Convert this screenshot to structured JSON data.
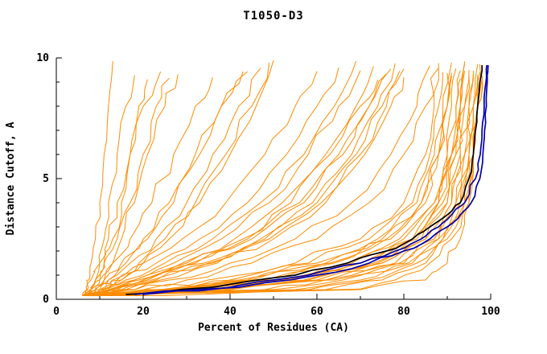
{
  "chart_data": {
    "type": "line",
    "title": "T1050-D3",
    "xlabel": "Percent of Residues (CA)",
    "ylabel": "Distance Cutoff, A",
    "xlim": [
      0,
      100
    ],
    "ylim": [
      0,
      10
    ],
    "x_major_ticks": [
      0,
      20,
      40,
      60,
      80,
      100
    ],
    "x_minor_ticks": [
      10,
      30,
      50,
      70,
      90
    ],
    "y_major_ticks": [
      0,
      5,
      10
    ],
    "y_minor_ticks": [
      1,
      2,
      3,
      4,
      6,
      7,
      8,
      9
    ],
    "grid": false,
    "legend": "none",
    "colors": {
      "models": "#ff8c00",
      "best_black": "#000000",
      "best_blue": "#0000b0",
      "axis": "#000000"
    },
    "y_levels": [
      0.15,
      0.4,
      0.8,
      1.5,
      2.5,
      4,
      6,
      8,
      10
    ],
    "models": [
      [
        6,
        7,
        7.5,
        8,
        9,
        10,
        11,
        12,
        13
      ],
      [
        7,
        8,
        9,
        10,
        11,
        12,
        14,
        16,
        18
      ],
      [
        8,
        9,
        10,
        11,
        13,
        15,
        17,
        19,
        21
      ],
      [
        6,
        7,
        8,
        10,
        12,
        14,
        17,
        20,
        24
      ],
      [
        9,
        10,
        11,
        13,
        15,
        18,
        21,
        25,
        28
      ],
      [
        7,
        8,
        9,
        11,
        14,
        17,
        20,
        23,
        26
      ],
      [
        6,
        8,
        10,
        13,
        17,
        22,
        27,
        32,
        36
      ],
      [
        8,
        10,
        12,
        16,
        21,
        27,
        33,
        38,
        43
      ],
      [
        7,
        9,
        12,
        17,
        23,
        30,
        36,
        42,
        47
      ],
      [
        9,
        12,
        15,
        20,
        26,
        33,
        40,
        46,
        50
      ],
      [
        6,
        8,
        11,
        15,
        20,
        26,
        32,
        38,
        44
      ],
      [
        8,
        11,
        14,
        19,
        25,
        32,
        39,
        45,
        49
      ],
      [
        6,
        9,
        13,
        20,
        29,
        39,
        48,
        55,
        60
      ],
      [
        7,
        10,
        15,
        23,
        33,
        44,
        53,
        60,
        65
      ],
      [
        8,
        12,
        18,
        27,
        38,
        49,
        58,
        65,
        70
      ],
      [
        6,
        10,
        16,
        25,
        36,
        47,
        57,
        64,
        69
      ],
      [
        9,
        14,
        21,
        31,
        43,
        54,
        63,
        70,
        74
      ],
      [
        7,
        12,
        19,
        29,
        41,
        52,
        62,
        69,
        73
      ],
      [
        8,
        13,
        20,
        32,
        45,
        57,
        66,
        72,
        76
      ],
      [
        6,
        11,
        18,
        30,
        44,
        56,
        65,
        72,
        77
      ],
      [
        9,
        15,
        23,
        35,
        48,
        60,
        69,
        75,
        79
      ],
      [
        7,
        13,
        21,
        34,
        47,
        59,
        68,
        74,
        78
      ],
      [
        8,
        14,
        24,
        37,
        50,
        62,
        71,
        77,
        80
      ],
      [
        6,
        12,
        22,
        36,
        49,
        61,
        70,
        76,
        80
      ],
      [
        7,
        20,
        35,
        55,
        70,
        80,
        85,
        87,
        88
      ],
      [
        8,
        25,
        42,
        60,
        74,
        83,
        87,
        89,
        90
      ],
      [
        6,
        22,
        40,
        58,
        72,
        82,
        86,
        88,
        89
      ],
      [
        9,
        28,
        46,
        64,
        77,
        85,
        88,
        90,
        91
      ],
      [
        7,
        26,
        45,
        63,
        76,
        84,
        88,
        90,
        91
      ],
      [
        8,
        30,
        50,
        68,
        80,
        87,
        90,
        91,
        92
      ],
      [
        6,
        24,
        44,
        62,
        75,
        84,
        88,
        90,
        91
      ],
      [
        9,
        32,
        52,
        70,
        82,
        88,
        91,
        92,
        93
      ],
      [
        7,
        28,
        48,
        67,
        79,
        87,
        90,
        92,
        93
      ],
      [
        8,
        34,
        55,
        72,
        83,
        89,
        92,
        93,
        94
      ],
      [
        6,
        30,
        52,
        70,
        82,
        88,
        91,
        93,
        94
      ],
      [
        9,
        36,
        58,
        75,
        85,
        90,
        93,
        94,
        95
      ],
      [
        7,
        32,
        54,
        73,
        84,
        90,
        92,
        94,
        95
      ],
      [
        8,
        50,
        66,
        79,
        87,
        91,
        94,
        95,
        96
      ],
      [
        6,
        34,
        57,
        75,
        85,
        91,
        93,
        95,
        96
      ],
      [
        9,
        55,
        70,
        81,
        88,
        92,
        95,
        96,
        97
      ],
      [
        7,
        36,
        60,
        78,
        87,
        92,
        94,
        96,
        97
      ],
      [
        8,
        58,
        72,
        83,
        89,
        93,
        95,
        97,
        97.5
      ],
      [
        6,
        38,
        62,
        80,
        88,
        93,
        95,
        96,
        97
      ],
      [
        9,
        62,
        75,
        85,
        90,
        94,
        96,
        97,
        98
      ],
      [
        7,
        40,
        64,
        82,
        89,
        94,
        96,
        97,
        98
      ],
      [
        8,
        65,
        78,
        86,
        91,
        95,
        96,
        97,
        98
      ],
      [
        6,
        18,
        30,
        45,
        60,
        72,
        80,
        85,
        88
      ],
      [
        9,
        16,
        26,
        40,
        55,
        68,
        77,
        83,
        86
      ],
      [
        9,
        70,
        85,
        90,
        93,
        95,
        96,
        97,
        97.5
      ],
      [
        7,
        48,
        62,
        74,
        82,
        88,
        91,
        93,
        94
      ]
    ],
    "highlight_y_levels": [
      0.2,
      0.5,
      1,
      1.5,
      2,
      2.5,
      3,
      3.5,
      4,
      5,
      6,
      7,
      8,
      9,
      9.7
    ],
    "highlights": [
      {
        "name": "best-model-black",
        "color": "#000000",
        "x": [
          16,
          36,
          55,
          67,
          76,
          82,
          86,
          90,
          93,
          95,
          96,
          96.5,
          97,
          97.5,
          98
        ]
      },
      {
        "name": "best-model-blue-1",
        "color": "#0000b0",
        "x": [
          20,
          42,
          60,
          72,
          80,
          86,
          90,
          93,
          95.5,
          97.5,
          98.2,
          98.6,
          99,
          99.2,
          99.4
        ]
      },
      {
        "name": "best-model-blue-2",
        "color": "#0000b0",
        "x": [
          18,
          40,
          58,
          70,
          78,
          84,
          88,
          91,
          94,
          96.5,
          97.6,
          98,
          98.5,
          98.9,
          99.1
        ]
      }
    ]
  }
}
